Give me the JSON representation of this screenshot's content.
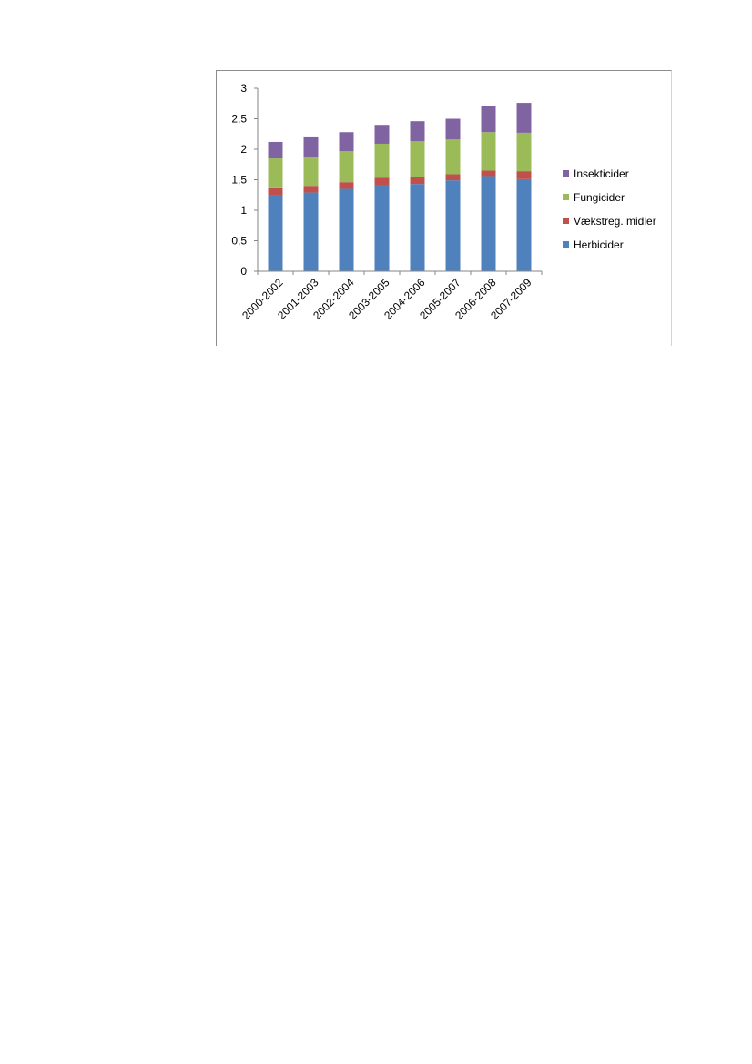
{
  "chart_data": {
    "type": "bar",
    "stacked": true,
    "categories": [
      "2000-2002",
      "2001-2003",
      "2002-2004",
      "2003-2005",
      "2004-2006",
      "2005-2007",
      "2006-2008",
      "2007-2009"
    ],
    "series": [
      {
        "name": "Herbicider",
        "color": "#4f81bd",
        "values": [
          1.24,
          1.29,
          1.35,
          1.41,
          1.43,
          1.49,
          1.56,
          1.51
        ]
      },
      {
        "name": "Vækstreg. midler",
        "color": "#c0504d",
        "values": [
          0.12,
          0.11,
          0.11,
          0.12,
          0.11,
          0.1,
          0.09,
          0.13
        ]
      },
      {
        "name": "Fungicider",
        "color": "#9bbb59",
        "values": [
          0.49,
          0.48,
          0.51,
          0.56,
          0.59,
          0.57,
          0.63,
          0.63
        ]
      },
      {
        "name": "Insekticider",
        "color": "#8064a2",
        "values": [
          0.27,
          0.33,
          0.31,
          0.31,
          0.33,
          0.34,
          0.43,
          0.49
        ]
      }
    ],
    "y_ticks": [
      "0",
      "0,5",
      "1",
      "1,5",
      "2",
      "2,5",
      "3"
    ],
    "ylim": [
      0,
      3
    ],
    "grid": false,
    "legend_position": "right",
    "legend_order": [
      "Insekticider",
      "Fungicider",
      "Vækstreg. midler",
      "Herbicider"
    ]
  }
}
